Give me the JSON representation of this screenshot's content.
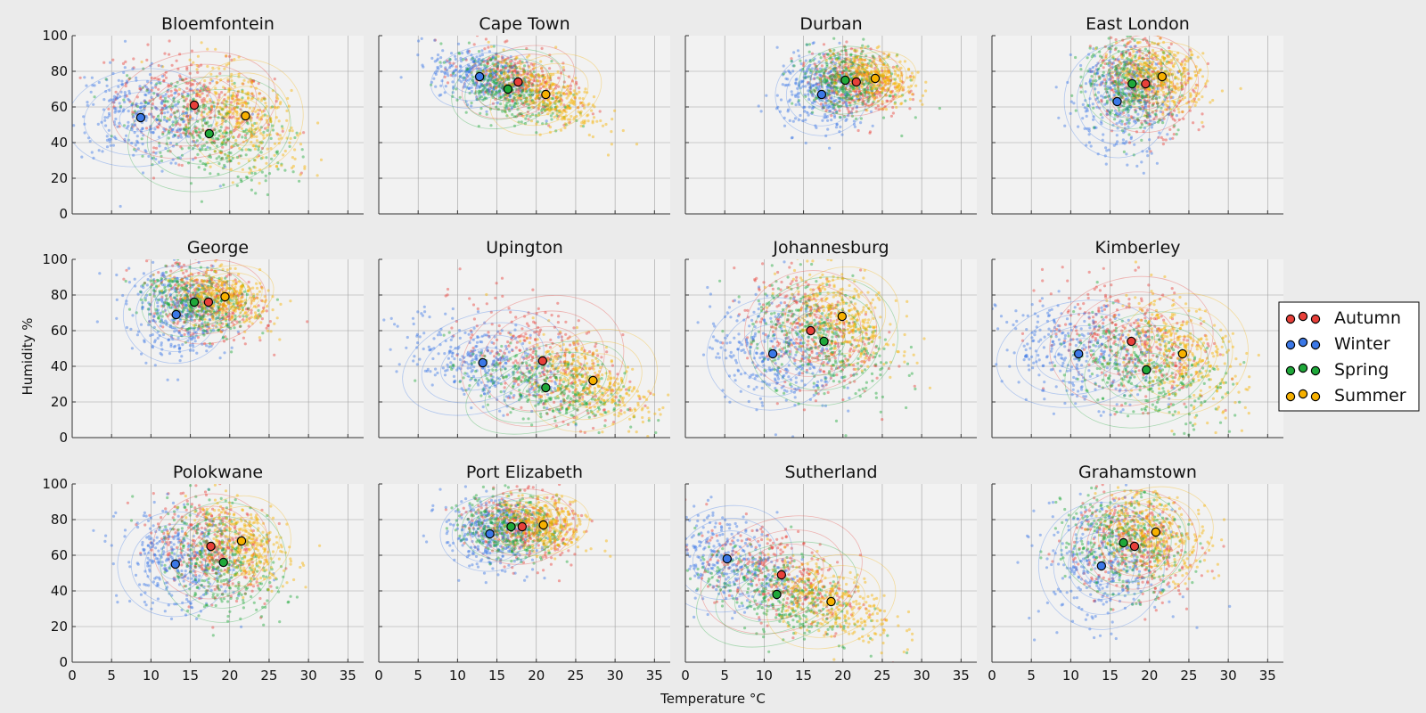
{
  "figure": {
    "xlabel": "Temperature °C",
    "ylabel": "Humidity %"
  },
  "legend": {
    "placement": "right",
    "entries": [
      {
        "name": "Autumn",
        "color": "#e8403a"
      },
      {
        "name": "Winter",
        "color": "#3b78e7"
      },
      {
        "name": "Spring",
        "color": "#1fa83a"
      },
      {
        "name": "Summer",
        "color": "#f7b100"
      }
    ]
  },
  "chart_data": {
    "type": "scatter",
    "grid": true,
    "xlim": [
      0,
      37
    ],
    "ylim": [
      0,
      100
    ],
    "xticks": [
      0,
      5,
      10,
      15,
      20,
      25,
      30,
      35
    ],
    "yticks": [
      0,
      20,
      40,
      60,
      80,
      100
    ],
    "panels": [
      {
        "title": "Bloemfontein",
        "means": [
          {
            "series": "Autumn",
            "x": 15.5,
            "y": 61
          },
          {
            "series": "Winter",
            "x": 8.7,
            "y": 54
          },
          {
            "series": "Spring",
            "x": 17.4,
            "y": 45
          },
          {
            "series": "Summer",
            "x": 22.0,
            "y": 55
          }
        ],
        "spread": [
          {
            "series": "Autumn",
            "sx": 5.0,
            "sy": 14,
            "rho": -0.3
          },
          {
            "series": "Winter",
            "sx": 4.5,
            "sy": 13,
            "rho": -0.2
          },
          {
            "series": "Spring",
            "sx": 5.0,
            "sy": 15,
            "rho": -0.4
          },
          {
            "series": "Summer",
            "sx": 3.5,
            "sy": 15,
            "rho": -0.5
          }
        ]
      },
      {
        "title": "Cape Town",
        "means": [
          {
            "series": "Autumn",
            "x": 17.7,
            "y": 74
          },
          {
            "series": "Winter",
            "x": 12.8,
            "y": 77
          },
          {
            "series": "Spring",
            "x": 16.4,
            "y": 70
          },
          {
            "series": "Summer",
            "x": 21.2,
            "y": 67
          }
        ],
        "spread": [
          {
            "series": "Autumn",
            "sx": 3.5,
            "sy": 9,
            "rho": -0.5
          },
          {
            "series": "Winter",
            "sx": 3.0,
            "sy": 8,
            "rho": -0.4
          },
          {
            "series": "Spring",
            "sx": 3.5,
            "sy": 10,
            "rho": -0.5
          },
          {
            "series": "Summer",
            "sx": 3.5,
            "sy": 10,
            "rho": -0.6
          }
        ]
      },
      {
        "title": "Durban",
        "means": [
          {
            "series": "Autumn",
            "x": 21.7,
            "y": 74
          },
          {
            "series": "Winter",
            "x": 17.3,
            "y": 67
          },
          {
            "series": "Spring",
            "x": 20.3,
            "y": 75
          },
          {
            "series": "Summer",
            "x": 24.1,
            "y": 76
          }
        ],
        "spread": [
          {
            "series": "Autumn",
            "sx": 2.8,
            "sy": 9,
            "rho": -0.2
          },
          {
            "series": "Winter",
            "sx": 2.8,
            "sy": 11,
            "rho": -0.1
          },
          {
            "series": "Spring",
            "sx": 2.8,
            "sy": 9,
            "rho": -0.2
          },
          {
            "series": "Summer",
            "sx": 2.5,
            "sy": 7,
            "rho": -0.3
          }
        ]
      },
      {
        "title": "East London",
        "means": [
          {
            "series": "Autumn",
            "x": 19.5,
            "y": 73
          },
          {
            "series": "Winter",
            "x": 15.9,
            "y": 63
          },
          {
            "series": "Spring",
            "x": 17.8,
            "y": 73
          },
          {
            "series": "Summer",
            "x": 21.6,
            "y": 77
          }
        ],
        "spread": [
          {
            "series": "Autumn",
            "sx": 3.2,
            "sy": 13,
            "rho": -0.2
          },
          {
            "series": "Winter",
            "sx": 3.2,
            "sy": 15,
            "rho": -0.1
          },
          {
            "series": "Spring",
            "sx": 3.0,
            "sy": 12,
            "rho": -0.2
          },
          {
            "series": "Summer",
            "sx": 2.8,
            "sy": 9,
            "rho": -0.3
          }
        ]
      },
      {
        "title": "George",
        "means": [
          {
            "series": "Autumn",
            "x": 17.3,
            "y": 76
          },
          {
            "series": "Winter",
            "x": 13.2,
            "y": 69
          },
          {
            "series": "Spring",
            "x": 15.5,
            "y": 76
          },
          {
            "series": "Summer",
            "x": 19.4,
            "y": 79
          }
        ],
        "spread": [
          {
            "series": "Autumn",
            "sx": 3.5,
            "sy": 11,
            "rho": -0.3
          },
          {
            "series": "Winter",
            "sx": 3.2,
            "sy": 13,
            "rho": -0.2
          },
          {
            "series": "Spring",
            "sx": 3.2,
            "sy": 9,
            "rho": -0.3
          },
          {
            "series": "Summer",
            "sx": 3.0,
            "sy": 8,
            "rho": -0.4
          }
        ]
      },
      {
        "title": "Upington",
        "means": [
          {
            "series": "Autumn",
            "x": 20.8,
            "y": 43
          },
          {
            "series": "Winter",
            "x": 13.2,
            "y": 42
          },
          {
            "series": "Spring",
            "x": 21.2,
            "y": 28
          },
          {
            "series": "Summer",
            "x": 27.2,
            "y": 32
          }
        ],
        "spread": [
          {
            "series": "Autumn",
            "sx": 5.0,
            "sy": 17,
            "rho": -0.5
          },
          {
            "series": "Winter",
            "sx": 5.0,
            "sy": 13,
            "rho": -0.5
          },
          {
            "series": "Spring",
            "sx": 5.0,
            "sy": 11,
            "rho": -0.5
          },
          {
            "series": "Summer",
            "sx": 4.0,
            "sy": 13,
            "rho": -0.6
          }
        ]
      },
      {
        "title": "Johannesburg",
        "means": [
          {
            "series": "Autumn",
            "x": 15.9,
            "y": 60
          },
          {
            "series": "Winter",
            "x": 11.1,
            "y": 47
          },
          {
            "series": "Spring",
            "x": 17.6,
            "y": 54
          },
          {
            "series": "Summer",
            "x": 19.9,
            "y": 68
          }
        ],
        "spread": [
          {
            "series": "Autumn",
            "sx": 4.0,
            "sy": 16,
            "rho": -0.3
          },
          {
            "series": "Winter",
            "sx": 4.0,
            "sy": 15,
            "rho": -0.2
          },
          {
            "series": "Spring",
            "sx": 4.5,
            "sy": 17,
            "rho": -0.4
          },
          {
            "series": "Summer",
            "sx": 3.5,
            "sy": 13,
            "rho": -0.5
          }
        ]
      },
      {
        "title": "Kimberley",
        "means": [
          {
            "series": "Autumn",
            "x": 17.7,
            "y": 54
          },
          {
            "series": "Winter",
            "x": 11.0,
            "y": 47
          },
          {
            "series": "Spring",
            "x": 19.6,
            "y": 38
          },
          {
            "series": "Summer",
            "x": 24.2,
            "y": 47
          }
        ],
        "spread": [
          {
            "series": "Autumn",
            "sx": 5.0,
            "sy": 17,
            "rho": -0.4
          },
          {
            "series": "Winter",
            "sx": 5.0,
            "sy": 14,
            "rho": -0.3
          },
          {
            "series": "Spring",
            "sx": 5.0,
            "sy": 15,
            "rho": -0.4
          },
          {
            "series": "Summer",
            "sx": 4.0,
            "sy": 16,
            "rho": -0.5
          }
        ]
      },
      {
        "title": "Polokwane",
        "means": [
          {
            "series": "Autumn",
            "x": 17.6,
            "y": 65
          },
          {
            "series": "Winter",
            "x": 13.1,
            "y": 55
          },
          {
            "series": "Spring",
            "x": 19.2,
            "y": 56
          },
          {
            "series": "Summer",
            "x": 21.5,
            "y": 68
          }
        ],
        "spread": [
          {
            "series": "Autumn",
            "sx": 3.5,
            "sy": 14,
            "rho": -0.3
          },
          {
            "series": "Winter",
            "sx": 3.5,
            "sy": 14,
            "rho": -0.2
          },
          {
            "series": "Spring",
            "sx": 3.8,
            "sy": 16,
            "rho": -0.4
          },
          {
            "series": "Summer",
            "sx": 3.0,
            "sy": 12,
            "rho": -0.4
          }
        ]
      },
      {
        "title": "Port Elizabeth",
        "means": [
          {
            "series": "Autumn",
            "x": 18.2,
            "y": 76
          },
          {
            "series": "Winter",
            "x": 14.1,
            "y": 72
          },
          {
            "series": "Spring",
            "x": 16.8,
            "y": 76
          },
          {
            "series": "Summer",
            "x": 20.9,
            "y": 77
          }
        ],
        "spread": [
          {
            "series": "Autumn",
            "sx": 3.2,
            "sy": 10,
            "rho": -0.2
          },
          {
            "series": "Winter",
            "sx": 3.0,
            "sy": 10,
            "rho": -0.1
          },
          {
            "series": "Spring",
            "sx": 3.0,
            "sy": 9,
            "rho": -0.2
          },
          {
            "series": "Summer",
            "sx": 2.8,
            "sy": 8,
            "rho": -0.3
          }
        ]
      },
      {
        "title": "Sutherland",
        "means": [
          {
            "series": "Autumn",
            "x": 12.2,
            "y": 49
          },
          {
            "series": "Winter",
            "x": 5.3,
            "y": 58
          },
          {
            "series": "Spring",
            "x": 11.6,
            "y": 38
          },
          {
            "series": "Summer",
            "x": 18.5,
            "y": 34
          }
        ],
        "spread": [
          {
            "series": "Autumn",
            "sx": 5.0,
            "sy": 15,
            "rho": -0.5
          },
          {
            "series": "Winter",
            "sx": 4.0,
            "sy": 14,
            "rho": -0.4
          },
          {
            "series": "Spring",
            "sx": 5.0,
            "sy": 13,
            "rho": -0.5
          },
          {
            "series": "Summer",
            "sx": 4.0,
            "sy": 12,
            "rho": -0.5
          }
        ]
      },
      {
        "title": "Grahamstown",
        "means": [
          {
            "series": "Autumn",
            "x": 18.1,
            "y": 65
          },
          {
            "series": "Winter",
            "x": 13.9,
            "y": 54
          },
          {
            "series": "Spring",
            "x": 16.7,
            "y": 67
          },
          {
            "series": "Summer",
            "x": 20.8,
            "y": 73
          }
        ],
        "spread": [
          {
            "series": "Autumn",
            "sx": 3.8,
            "sy": 15,
            "rho": -0.2
          },
          {
            "series": "Winter",
            "sx": 3.8,
            "sy": 17,
            "rho": -0.1
          },
          {
            "series": "Spring",
            "sx": 3.8,
            "sy": 14,
            "rho": -0.2
          },
          {
            "series": "Summer",
            "sx": 3.5,
            "sy": 12,
            "rho": -0.3
          }
        ]
      }
    ]
  }
}
